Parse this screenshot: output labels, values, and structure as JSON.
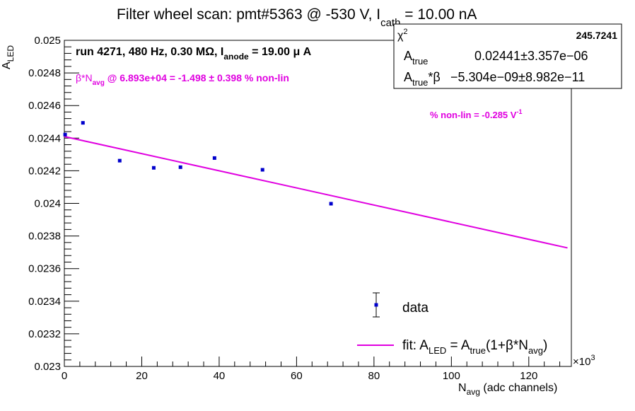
{
  "chart_data": {
    "type": "scatter",
    "title": {
      "main": "Filter wheel scan: pmt#5363 @  -530 V, I",
      "sub": "cath",
      "tail": " = 10.00 nA"
    },
    "xlabel": {
      "main": "N",
      "sub": "avg",
      "tail": " (adc channels)"
    },
    "ylabel": {
      "main": "A",
      "sub": "LED"
    },
    "x_exponent": {
      "base": "×10",
      "exp": "3"
    },
    "xlim": [
      0,
      131
    ],
    "ylim": [
      0.023,
      0.025
    ],
    "x_ticks": [
      "0",
      "20",
      "40",
      "60",
      "80",
      "100",
      "120"
    ],
    "y_ticks": [
      "0.023",
      "0.0232",
      "0.0234",
      "0.0236",
      "0.0238",
      "0.024",
      "0.0242",
      "0.0244",
      "0.0246",
      "0.0248",
      "0.025"
    ],
    "series": [
      {
        "name": "data",
        "x": [
          0.2,
          4.8,
          14.3,
          23.1,
          30.0,
          38.8,
          51.2,
          68.9
        ],
        "y": [
          0.024422,
          0.024494,
          0.024262,
          0.024218,
          0.024222,
          0.024278,
          0.024206,
          0.023998
        ],
        "color": "#0000cc"
      }
    ],
    "fit": {
      "x": [
        0,
        130
      ],
      "y": [
        0.02441,
        0.023727
      ],
      "color": "#e000e0"
    },
    "grid": false
  },
  "stats_box": {
    "chi2_label": "χ",
    "chi2_exp": "2",
    "chi2_value": "245.7241",
    "atrue_label": "A",
    "atrue_sub": "true",
    "atrue_value": "0.02441",
    "atrue_pm": "±",
    "atrue_err": "3.357e−06",
    "beta_label": "A",
    "beta_sub": "true",
    "beta_suffix": "*β",
    "beta_value": "−5.304e−09",
    "beta_pm": "±",
    "beta_err": "8.982e−11"
  },
  "annotations": {
    "run": {
      "main": "run 4271, 480 Hz, 0.30 MΩ, I",
      "sub": "anode",
      "tail": " = 19.00 μ A"
    },
    "beta_nonlin": {
      "main": "β*N",
      "sub": "avg",
      "tail": " @ 6.893e+04 = -1.498 ± 0.398 % non-lin"
    },
    "nonlin_slope": {
      "main": "% non-lin = -0.285 V",
      "sup": "-1"
    }
  },
  "legend": {
    "data_label": "data",
    "fit_main": "fit: A",
    "fit_sub1": "LED",
    "fit_mid": " = A",
    "fit_sub2": "true",
    "fit_mid2": "(1+β*N",
    "fit_sub3": "avg",
    "fit_tail": ")"
  }
}
